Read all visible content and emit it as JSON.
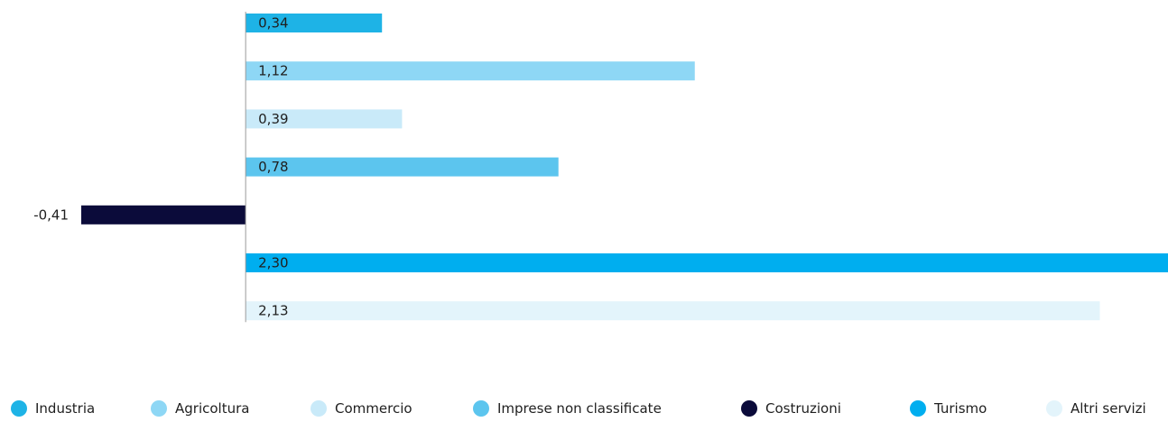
{
  "chart_data": {
    "type": "bar",
    "orientation": "horizontal",
    "categories": [
      "Industria",
      "Agricoltura",
      "Commercio",
      "Imprese non classificate",
      "Costruzioni",
      "Turismo",
      "Altri servizi"
    ],
    "values": [
      0.34,
      1.12,
      0.39,
      0.78,
      -0.41,
      2.3,
      2.13
    ],
    "value_labels": [
      "0,34",
      "1,12",
      "0,39",
      "0,78",
      "-0,41",
      "2,30",
      "2,13"
    ],
    "colors": [
      "#1eb3e6",
      "#8ed7f5",
      "#c9eaf9",
      "#5cc5ee",
      "#0b0b3a",
      "#00aeef",
      "#e3f4fb"
    ],
    "xlim": [
      -0.41,
      2.3
    ],
    "grid": false,
    "axis_at_zero": true,
    "legend": {
      "placement": "bottom",
      "entries": [
        "Industria",
        "Agricoltura",
        "Commercio",
        "Imprese non classificate",
        "Costruzioni",
        "Turismo",
        "Altri servizi"
      ]
    }
  }
}
